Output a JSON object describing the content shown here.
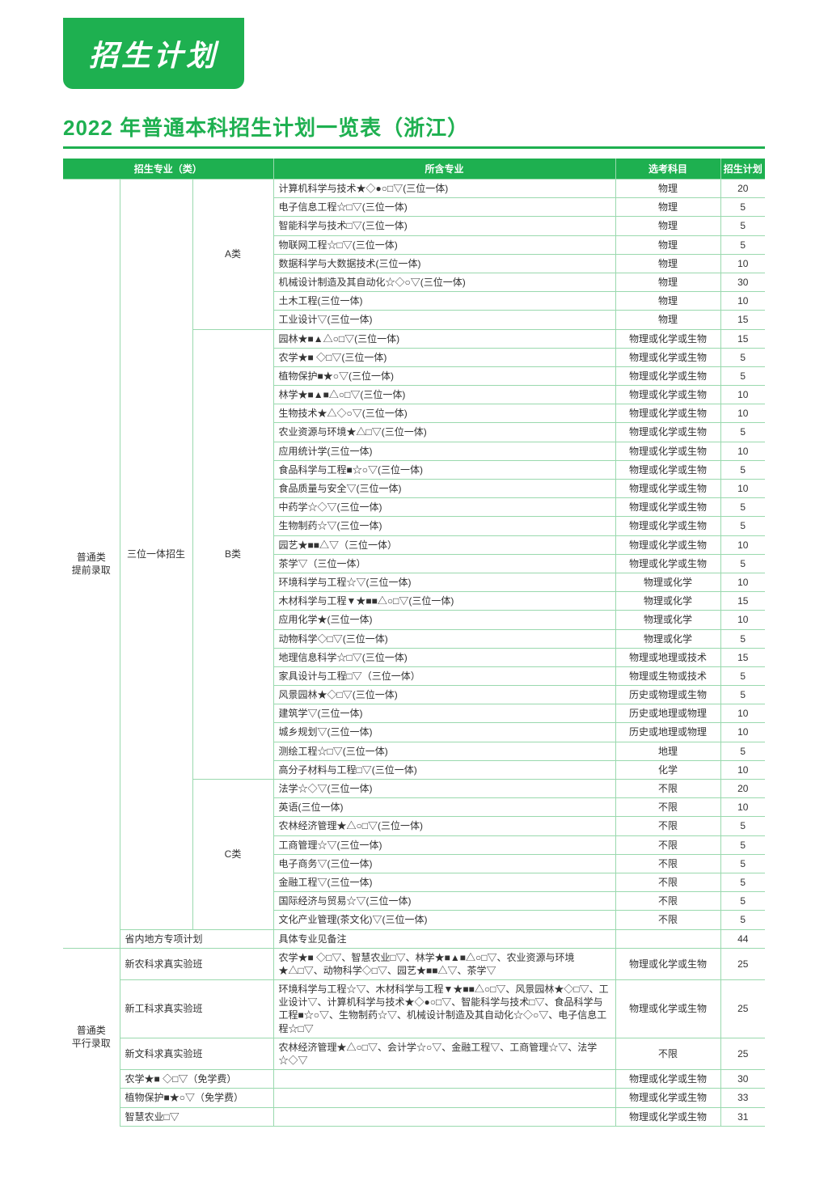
{
  "banner": "招生计划",
  "title": "2022 年普通本科招生计划一览表（浙江）",
  "headers": {
    "major_cat": "招生专业（类）",
    "included": "所含专业",
    "req": "选考科目",
    "plan": "招生计划"
  },
  "cat1_label": "普通类\n提前录取",
  "sanwei_label": "三位一体招生",
  "groupA_label": "A类",
  "groupB_label": "B类",
  "groupC_label": "C类",
  "provincial_label": "省内地方专项计划",
  "provincial_note": "具体专业见备注",
  "provincial_num": "44",
  "cat2_label": "普通类\n平行录取",
  "A": [
    {
      "m": "计算机科学与技术★◇●○□▽(三位一体)",
      "r": "物理",
      "n": "20"
    },
    {
      "m": "电子信息工程☆□▽(三位一体)",
      "r": "物理",
      "n": "5"
    },
    {
      "m": "智能科学与技术□▽(三位一体)",
      "r": "物理",
      "n": "5"
    },
    {
      "m": "物联网工程☆□▽(三位一体)",
      "r": "物理",
      "n": "5"
    },
    {
      "m": "数据科学与大数据技术(三位一体)",
      "r": "物理",
      "n": "10"
    },
    {
      "m": "机械设计制造及其自动化☆◇○▽(三位一体)",
      "r": "物理",
      "n": "30"
    },
    {
      "m": "土木工程(三位一体)",
      "r": "物理",
      "n": "10"
    },
    {
      "m": "工业设计▽(三位一体)",
      "r": "物理",
      "n": "15"
    }
  ],
  "B": [
    {
      "m": "园林★■▲△○□▽(三位一体)",
      "r": "物理或化学或生物",
      "n": "15"
    },
    {
      "m": "农学★■ ◇□▽(三位一体)",
      "r": "物理或化学或生物",
      "n": "5"
    },
    {
      "m": "植物保护■★○▽(三位一体)",
      "r": "物理或化学或生物",
      "n": "5"
    },
    {
      "m": "林学★■▲■△○□▽(三位一体)",
      "r": "物理或化学或生物",
      "n": "10"
    },
    {
      "m": "生物技术★△◇○▽(三位一体)",
      "r": "物理或化学或生物",
      "n": "10"
    },
    {
      "m": "农业资源与环境★△□▽(三位一体)",
      "r": "物理或化学或生物",
      "n": "5"
    },
    {
      "m": "应用统计学(三位一体)",
      "r": "物理或化学或生物",
      "n": "10"
    },
    {
      "m": "食品科学与工程■☆○▽(三位一体)",
      "r": "物理或化学或生物",
      "n": "5"
    },
    {
      "m": "食品质量与安全▽(三位一体)",
      "r": "物理或化学或生物",
      "n": "10"
    },
    {
      "m": "中药学☆◇▽(三位一体)",
      "r": "物理或化学或生物",
      "n": "5"
    },
    {
      "m": "生物制药☆▽(三位一体)",
      "r": "物理或化学或生物",
      "n": "5"
    },
    {
      "m": "园艺★■■△▽（三位一体）",
      "r": "物理或化学或生物",
      "n": "10"
    },
    {
      "m": "茶学▽（三位一体）",
      "r": "物理或化学或生物",
      "n": "5"
    },
    {
      "m": "环境科学与工程☆▽(三位一体)",
      "r": "物理或化学",
      "n": "10"
    },
    {
      "m": "木材科学与工程▼★■■△○□▽(三位一体)",
      "r": "物理或化学",
      "n": "15"
    },
    {
      "m": "应用化学★(三位一体)",
      "r": "物理或化学",
      "n": "10"
    },
    {
      "m": "动物科学◇□▽(三位一体)",
      "r": "物理或化学",
      "n": "5"
    },
    {
      "m": "地理信息科学☆□▽(三位一体)",
      "r": "物理或地理或技术",
      "n": "15"
    },
    {
      "m": "家具设计与工程□▽（三位一体）",
      "r": "物理或生物或技术",
      "n": "5"
    },
    {
      "m": "风景园林★◇□▽(三位一体)",
      "r": "历史或物理或生物",
      "n": "5"
    },
    {
      "m": "建筑学▽(三位一体)",
      "r": "历史或地理或物理",
      "n": "10"
    },
    {
      "m": "城乡规划▽(三位一体)",
      "r": "历史或地理或物理",
      "n": "10"
    },
    {
      "m": "测绘工程☆□▽(三位一体)",
      "r": "地理",
      "n": "5"
    },
    {
      "m": "高分子材料与工程□▽(三位一体)",
      "r": "化学",
      "n": "10"
    }
  ],
  "C": [
    {
      "m": "法学☆◇▽(三位一体)",
      "r": "不限",
      "n": "20"
    },
    {
      "m": "英语(三位一体)",
      "r": "不限",
      "n": "10"
    },
    {
      "m": "农林经济管理★△○□▽(三位一体)",
      "r": "不限",
      "n": "5"
    },
    {
      "m": "工商管理☆▽(三位一体)",
      "r": "不限",
      "n": "5"
    },
    {
      "m": "电子商务▽(三位一体)",
      "r": "不限",
      "n": "5"
    },
    {
      "m": "金融工程▽(三位一体)",
      "r": "不限",
      "n": "5"
    },
    {
      "m": "国际经济与贸易☆▽(三位一体)",
      "r": "不限",
      "n": "5"
    },
    {
      "m": "文化产业管理(茶文化)▽(三位一体)",
      "r": "不限",
      "n": "5"
    }
  ],
  "P": [
    {
      "sub": "新农科求真实验班",
      "m": "农学★■ ◇□▽、智慧农业□▽、林学★■▲■△○□▽、农业资源与环境★△□▽、动物科学◇□▽、园艺★■■△▽、茶学▽",
      "r": "物理或化学或生物",
      "n": "25"
    },
    {
      "sub": "新工科求真实验班",
      "m": "环境科学与工程☆▽、木材科学与工程▼★■■△○□▽、风景园林★◇□▽、工业设计▽、计算机科学与技术★◇●○□▽、智能科学与技术□▽、食品科学与工程■☆○▽、生物制药☆▽、机械设计制造及其自动化☆◇○▽、电子信息工程☆□▽",
      "r": "物理或化学或生物",
      "n": "25"
    },
    {
      "sub": "新文科求真实验班",
      "m": "农林经济管理★△○□▽、会计学☆○▽、金融工程▽、工商管理☆▽、法学☆◇▽",
      "r": "不限",
      "n": "25"
    },
    {
      "sub": "农学★■ ◇□▽（免学费）",
      "m": "",
      "r": "物理或化学或生物",
      "n": "30"
    },
    {
      "sub": "植物保护■★○▽（免学费）",
      "m": "",
      "r": "物理或化学或生物",
      "n": "33"
    },
    {
      "sub": "智慧农业□▽",
      "m": "",
      "r": "物理或化学或生物",
      "n": "31"
    }
  ]
}
